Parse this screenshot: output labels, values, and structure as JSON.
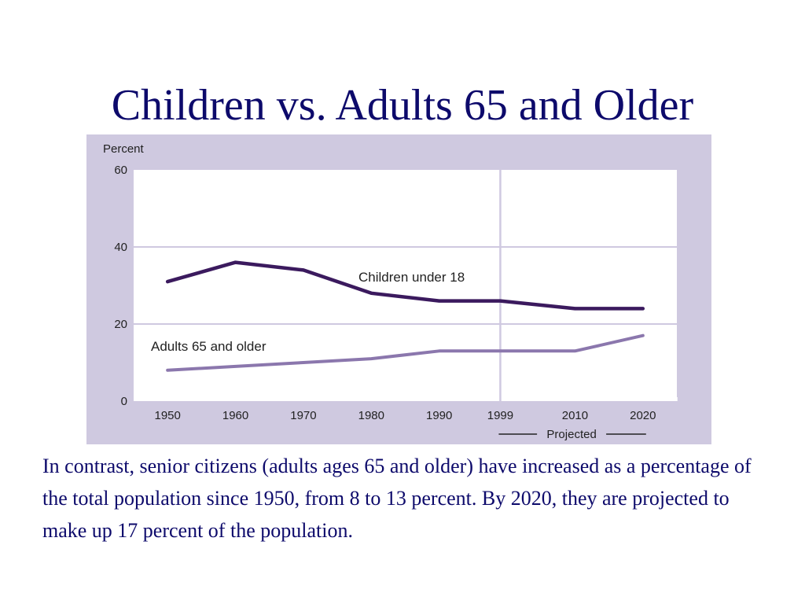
{
  "slide": {
    "title": "Children vs. Adults 65 and Older",
    "body": "In contrast, senior citizens (adults ages 65 and older) have increased as a percentage of the total population since 1950, from 8 to 13 percent. By 2020, they are projected to make up 17 percent of the population."
  },
  "chart_data": {
    "type": "line",
    "ylabel": "Percent",
    "xlabel": "",
    "x": [
      1950,
      1960,
      1970,
      1980,
      1990,
      1999,
      2010,
      2020
    ],
    "x_tick_labels": [
      "1950",
      "1960",
      "1970",
      "1980",
      "1990",
      "1999",
      "2010",
      "2020"
    ],
    "xlim": [
      1945,
      2025
    ],
    "ylim": [
      0,
      60
    ],
    "y_ticks": [
      0,
      20,
      40,
      60
    ],
    "grid": "horizontal at 20 and 40, vertical divider at 1999",
    "projected_label": "Projected",
    "projected_from": 1999,
    "series": [
      {
        "name": "Children under 18",
        "values": [
          31,
          36,
          34,
          28,
          26,
          26,
          24,
          24
        ],
        "color": "#3b1a5e"
      },
      {
        "name": "Adults 65 and older",
        "values": [
          8,
          9,
          10,
          11,
          13,
          13,
          13,
          17
        ],
        "color": "#8b77ad"
      }
    ],
    "colors": {
      "panel_background": "#cfc9e0",
      "plot_background": "#ffffff",
      "gridline": "#cfc9e0"
    }
  }
}
